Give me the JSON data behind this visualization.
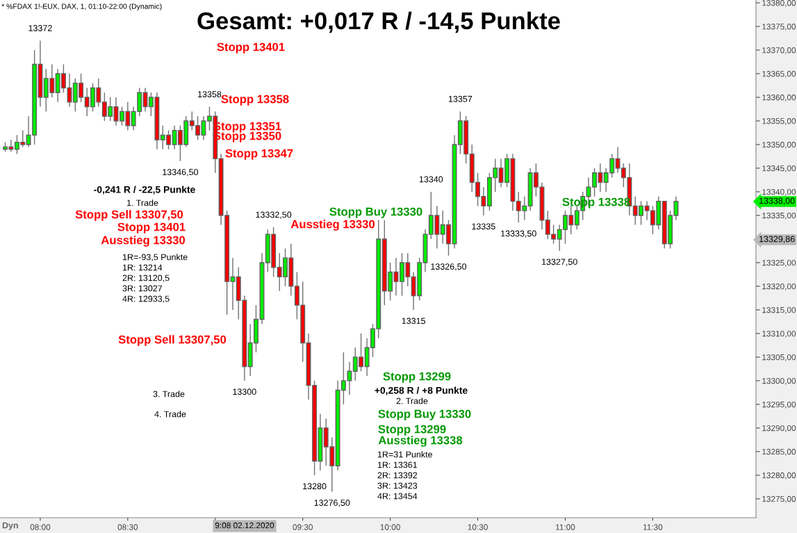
{
  "chart_data": {
    "type": "candlestick",
    "title": "Gesamt: +0,017 R / -14,5 Punkte",
    "subtitle": "* %FDAX 1!-EUX, DAX, 1, 01:10-22:00 (Dynamic)",
    "x": [
      7.8,
      7.833,
      7.867,
      7.9,
      7.933,
      7.967,
      8,
      8.033,
      8.067,
      8.1,
      8.133,
      8.167,
      8.2,
      8.233,
      8.267,
      8.3,
      8.333,
      8.367,
      8.4,
      8.433,
      8.467,
      8.5,
      8.533,
      8.567,
      8.6,
      8.633,
      8.667,
      8.7,
      8.733,
      8.767,
      8.8,
      8.833,
      8.867,
      8.9,
      8.933,
      8.967,
      9,
      9.033,
      9.067,
      9.1,
      9.133,
      9.167,
      9.2,
      9.233,
      9.267,
      9.3,
      9.333,
      9.367,
      9.4,
      9.433,
      9.467,
      9.5,
      9.533,
      9.567,
      9.6,
      9.633,
      9.667,
      9.7,
      9.733,
      9.767,
      9.8,
      9.833,
      9.867,
      9.9,
      9.933,
      9.967,
      10,
      10.033,
      10.067,
      10.1,
      10.133,
      10.167,
      10.2,
      10.233,
      10.267,
      10.3,
      10.333,
      10.367,
      10.4,
      10.433,
      10.467,
      10.5,
      10.533,
      10.567,
      10.6,
      10.633,
      10.667,
      10.7,
      10.733,
      10.767,
      10.8,
      10.833,
      10.867,
      10.9,
      10.933,
      10.967,
      11,
      11.033,
      11.067,
      11.1,
      11.133,
      11.167,
      11.2,
      11.233,
      11.267,
      11.3,
      11.333,
      11.367,
      11.4,
      11.433,
      11.467,
      11.5,
      11.533,
      11.567,
      11.6,
      11.633
    ],
    "ohlc": [
      [
        13349,
        13350.5,
        13348.5,
        13349.5
      ],
      [
        13349.5,
        13351,
        13348.5,
        13349
      ],
      [
        13349,
        13352,
        13348,
        13350.5
      ],
      [
        13350.5,
        13353,
        13349.5,
        13350
      ],
      [
        13350,
        13356,
        13349.5,
        13352
      ],
      [
        13352,
        13370,
        13350,
        13367
      ],
      [
        13367,
        13372,
        13358,
        13360
      ],
      [
        13360,
        13366,
        13357,
        13364
      ],
      [
        13364,
        13367,
        13360,
        13361
      ],
      [
        13361,
        13366,
        13359,
        13365
      ],
      [
        13365,
        13367,
        13361,
        13362
      ],
      [
        13362,
        13365,
        13358,
        13359
      ],
      [
        13359,
        13364,
        13357,
        13363
      ],
      [
        13363,
        13365,
        13359,
        13360
      ],
      [
        13360,
        13362,
        13356,
        13358
      ],
      [
        13358,
        13363,
        13357,
        13362
      ],
      [
        13362,
        13364,
        13358,
        13359
      ],
      [
        13359,
        13361,
        13355,
        13356
      ],
      [
        13356,
        13360,
        13355,
        13358
      ],
      [
        13358,
        13360,
        13354,
        13355
      ],
      [
        13355,
        13358,
        13354,
        13357
      ],
      [
        13357,
        13359,
        13353,
        13354
      ],
      [
        13354,
        13358,
        13353,
        13357
      ],
      [
        13357,
        13362,
        13356,
        13361
      ],
      [
        13361,
        13362,
        13357,
        13358
      ],
      [
        13358,
        13361,
        13356,
        13360
      ],
      [
        13360,
        13361,
        13349,
        13351
      ],
      [
        13351,
        13354,
        13349,
        13352
      ],
      [
        13352,
        13353,
        13349,
        13350
      ],
      [
        13350,
        13354,
        13349,
        13353
      ],
      [
        13353,
        13354,
        13346.5,
        13350
      ],
      [
        13350,
        13356,
        13349.5,
        13355
      ],
      [
        13355,
        13357,
        13353,
        13354
      ],
      [
        13354,
        13356,
        13351,
        13352
      ],
      [
        13352,
        13356,
        13351,
        13355
      ],
      [
        13355,
        13358,
        13353,
        13356
      ],
      [
        13356,
        13357,
        13344,
        13347
      ],
      [
        13347,
        13348,
        13333,
        13335
      ],
      [
        13335,
        13336,
        13314,
        13321
      ],
      [
        13321,
        13326,
        13315,
        13322
      ],
      [
        13322,
        13324,
        13313,
        13317
      ],
      [
        13317,
        13318,
        13300,
        13303
      ],
      [
        13303,
        13312,
        13301,
        13308
      ],
      [
        13308,
        13316,
        13306,
        13313
      ],
      [
        13313,
        13327,
        13312,
        13325
      ],
      [
        13325,
        13332,
        13323,
        13331
      ],
      [
        13331,
        13332.5,
        13322,
        13324
      ],
      [
        13324,
        13327,
        13319,
        13322
      ],
      [
        13322,
        13328,
        13320,
        13326
      ],
      [
        13326,
        13329,
        13318,
        13320
      ],
      [
        13320,
        13323,
        13313,
        13316
      ],
      [
        13316,
        13321,
        13304,
        13308
      ],
      [
        13308,
        13310,
        13296,
        13299
      ],
      [
        13299,
        13300,
        13280,
        13283
      ],
      [
        13283,
        13293,
        13281,
        13290
      ],
      [
        13290,
        13292,
        13282,
        13286
      ],
      [
        13286,
        13288,
        13276.5,
        13282
      ],
      [
        13282,
        13300,
        13281,
        13298
      ],
      [
        13298,
        13306,
        13295,
        13300
      ],
      [
        13300,
        13304,
        13297,
        13302
      ],
      [
        13302,
        13307,
        13300,
        13305
      ],
      [
        13305,
        13310,
        13302,
        13303
      ],
      [
        13303,
        13309,
        13301,
        13307
      ],
      [
        13307,
        13312,
        13305,
        13311
      ],
      [
        13311,
        13334,
        13309,
        13330
      ],
      [
        13330,
        13334,
        13316,
        13319
      ],
      [
        13319,
        13325,
        13317,
        13323
      ],
      [
        13323,
        13326,
        13318,
        13321
      ],
      [
        13321,
        13327,
        13318,
        13325
      ],
      [
        13325,
        13327,
        13320,
        13322
      ],
      [
        13322,
        13323,
        13315,
        13318
      ],
      [
        13318,
        13326,
        13317,
        13325
      ],
      [
        13325,
        13332,
        13323,
        13331
      ],
      [
        13331,
        13340,
        13330,
        13335
      ],
      [
        13335,
        13337,
        13328,
        13331
      ],
      [
        13331,
        13336,
        13329,
        13333
      ],
      [
        13333,
        13334,
        13326.5,
        13329
      ],
      [
        13329,
        13352,
        13328,
        13350
      ],
      [
        13350,
        13357,
        13348,
        13355
      ],
      [
        13355,
        13356,
        13346,
        13348
      ],
      [
        13348,
        13350,
        13340,
        13342
      ],
      [
        13342,
        13344,
        13337,
        13339
      ],
      [
        13339,
        13341,
        13335,
        13337
      ],
      [
        13337,
        13344,
        13336,
        13343
      ],
      [
        13343,
        13347,
        13340,
        13345
      ],
      [
        13345,
        13347,
        13341,
        13342
      ],
      [
        13342,
        13348,
        13341,
        13347
      ],
      [
        13347,
        13348,
        13336,
        13338
      ],
      [
        13338,
        13340,
        13333.5,
        13336
      ],
      [
        13336,
        13339,
        13334,
        13337
      ],
      [
        13337,
        13345,
        13336,
        13344
      ],
      [
        13344,
        13346,
        13339,
        13341
      ],
      [
        13341,
        13342,
        13332,
        13334
      ],
      [
        13334,
        13336,
        13330,
        13331
      ],
      [
        13331,
        13333,
        13329,
        13330
      ],
      [
        13330,
        13333,
        13327.5,
        13332
      ],
      [
        13332,
        13336,
        13329,
        13335
      ],
      [
        13335,
        13337,
        13331,
        13333
      ],
      [
        13333,
        13337,
        13332,
        13336
      ],
      [
        13336,
        13340,
        13334,
        13339
      ],
      [
        13339,
        13343,
        13337,
        13341
      ],
      [
        13341,
        13345,
        13339,
        13344
      ],
      [
        13344,
        13346,
        13340,
        13342
      ],
      [
        13342,
        13345,
        13340,
        13344
      ],
      [
        13344,
        13348,
        13343,
        13347
      ],
      [
        13347,
        13349.5,
        13344,
        13345
      ],
      [
        13345,
        13346,
        13341,
        13343
      ],
      [
        13343,
        13346,
        13335,
        13337
      ],
      [
        13337,
        13339,
        13333,
        13335
      ],
      [
        13335,
        13338,
        13333,
        13337
      ],
      [
        13337,
        13338,
        13334,
        13336
      ],
      [
        13336,
        13337,
        13331,
        13333
      ],
      [
        13333,
        13339,
        13332,
        13338
      ],
      [
        13338,
        13338,
        13328,
        13329
      ],
      [
        13329,
        13336,
        13328,
        13335
      ],
      [
        13335,
        13339,
        13334,
        13338
      ]
    ],
    "colors": [
      "#00ee00",
      "#ff0000",
      "#00ee00",
      "#ff0000",
      "#00ee00",
      "#00ee00",
      "#ff0000",
      "#00ee00",
      "#ff0000",
      "#00ee00",
      "#ff0000",
      "#ff0000",
      "#00ee00",
      "#ff0000",
      "#ff0000",
      "#00ee00",
      "#ff0000",
      "#ff0000",
      "#00ee00",
      "#ff0000",
      "#00ee00",
      "#ff0000",
      "#00ee00",
      "#00ee00",
      "#ff0000",
      "#00ee00",
      "#ff0000",
      "#00ee00",
      "#ff0000",
      "#00ee00",
      "#ff0000",
      "#00ee00",
      "#ff0000",
      "#ff0000",
      "#00ee00",
      "#00ee00",
      "#ff0000",
      "#ff0000",
      "#ff0000",
      "#00ee00",
      "#ff0000",
      "#ff0000",
      "#00ee00",
      "#00ee00",
      "#00ee00",
      "#00ee00",
      "#ff0000",
      "#ff0000",
      "#00ee00",
      "#ff0000",
      "#ff0000",
      "#ff0000",
      "#ff0000",
      "#ff0000",
      "#00ee00",
      "#ff0000",
      "#ff0000",
      "#00ee00",
      "#00ee00",
      "#00ee00",
      "#00ee00",
      "#ff0000",
      "#00ee00",
      "#00ee00",
      "#00ee00",
      "#ff0000",
      "#00ee00",
      "#ff0000",
      "#00ee00",
      "#ff0000",
      "#ff0000",
      "#00ee00",
      "#00ee00",
      "#00ee00",
      "#ff0000",
      "#00ee00",
      "#ff0000",
      "#00ee00",
      "#00ee00",
      "#ff0000",
      "#ff0000",
      "#ff0000",
      "#ff0000",
      "#00ee00",
      "#00ee00",
      "#ff0000",
      "#00ee00",
      "#ff0000",
      "#ff0000",
      "#00ee00",
      "#00ee00",
      "#ff0000",
      "#ff0000",
      "#ff0000",
      "#ff0000",
      "#00ee00",
      "#00ee00",
      "#ff0000",
      "#00ee00",
      "#00ee00",
      "#00ee00",
      "#00ee00",
      "#ff0000",
      "#00ee00",
      "#00ee00",
      "#ff0000",
      "#ff0000",
      "#ff0000",
      "#ff0000",
      "#00ee00",
      "#ff0000",
      "#ff0000",
      "#00ee00",
      "#ff0000",
      "#00ee00",
      "#00ee00"
    ],
    "xlim": [
      7.77,
      12.09
    ],
    "ylim": [
      13271,
      13380.6
    ],
    "xticks": [
      {
        "value": 8,
        "label": "08:00"
      },
      {
        "value": 8.5,
        "label": "08:30"
      },
      {
        "value": 9,
        "label": null
      },
      {
        "value": 9.5,
        "label": "09:30"
      },
      {
        "value": 10,
        "label": "10:00"
      },
      {
        "value": 10.5,
        "label": "10:30"
      },
      {
        "value": 11,
        "label": "11:00"
      },
      {
        "value": 11.5,
        "label": "11:30"
      }
    ],
    "yticks": [
      {
        "value": 13275,
        "label": "13275,00"
      },
      {
        "value": 13280,
        "label": "13280,00"
      },
      {
        "value": 13285,
        "label": "13285,00"
      },
      {
        "value": 13290,
        "label": "13290,00"
      },
      {
        "value": 13295,
        "label": "13295,00"
      },
      {
        "value": 13300,
        "label": "13300,00"
      },
      {
        "value": 13305,
        "label": "13305,00"
      },
      {
        "value": 13310,
        "label": "13310,00"
      },
      {
        "value": 13315,
        "label": "13315,00"
      },
      {
        "value": 13320,
        "label": "13320,00"
      },
      {
        "value": 13325,
        "label": "13325,00"
      },
      {
        "value": 13330,
        "label": null
      },
      {
        "value": 13335,
        "label": "13335,00"
      },
      {
        "value": 13340,
        "label": "13340,00"
      },
      {
        "value": 13345,
        "label": "13345,00"
      },
      {
        "value": 13350,
        "label": "13350,00"
      },
      {
        "value": 13355,
        "label": "13355,00"
      },
      {
        "value": 13360,
        "label": "13360,00"
      },
      {
        "value": 13365,
        "label": "13365,00"
      },
      {
        "value": 13370,
        "label": "13370,00"
      },
      {
        "value": 13375,
        "label": "13375,00"
      },
      {
        "value": 13380,
        "label": "13380,00"
      }
    ],
    "grid": false,
    "annotations": [
      {
        "text": "13372",
        "x": 8,
        "y": 13372
      },
      {
        "text": "13358",
        "x": 8.967,
        "y": 13358
      },
      {
        "text": "13346,50",
        "x": 8.8,
        "y": 13346.5
      },
      {
        "text": "13332,50",
        "x": 9.333,
        "y": 13332.5
      },
      {
        "text": "13300",
        "x": 9.167,
        "y": 13300
      },
      {
        "text": "13280",
        "x": 9.567,
        "y": 13280
      },
      {
        "text": "13276,50",
        "x": 9.667,
        "y": 13276.5
      },
      {
        "text": "13340",
        "x": 10.233,
        "y": 13340
      },
      {
        "text": "13357",
        "x": 10.4,
        "y": 13357
      },
      {
        "text": "13335",
        "x": 10.533,
        "y": 13335
      },
      {
        "text": "13326,50",
        "x": 10.333,
        "y": 13326.5
      },
      {
        "text": "13333,50",
        "x": 10.733,
        "y": 13333.5
      },
      {
        "text": "13327,50",
        "x": 10.967,
        "y": 13327.5
      },
      {
        "text": "13315",
        "x": 10.133,
        "y": 13315
      },
      "Stopp 13401",
      "Stopp 13358",
      "Stopp 13351",
      "Stopp 13350",
      "Stopp 13347",
      "-0,241 R / -22,5 Punkte",
      "1. Trade",
      "Stopp Sell 13307,50",
      "Stopp 13401",
      "Ausstieg 13330",
      "1R=-93,5 Punkte",
      "1R: 13214",
      "2R: 13120,5",
      "3R: 13027",
      "4R: 12933,5",
      "Stopp Sell 13307,50",
      "3. Trade",
      "4. Trade",
      "Stopp Buy 13330",
      "Ausstieg 13330",
      "Stopp 13299",
      "+0,258 R / +8 Punkte",
      "2. Trade",
      "Stopp Buy 13330",
      "Stopp 13299",
      "Ausstieg 13338",
      "1R=31 Punkte",
      "1R: 13361",
      "2R: 13392",
      "3R: 13423",
      "4R: 13454",
      "Stopp 13338",
      "13338,00",
      "13329,86",
      "9:08 02.12.2020",
      "Dyn"
    ]
  }
}
